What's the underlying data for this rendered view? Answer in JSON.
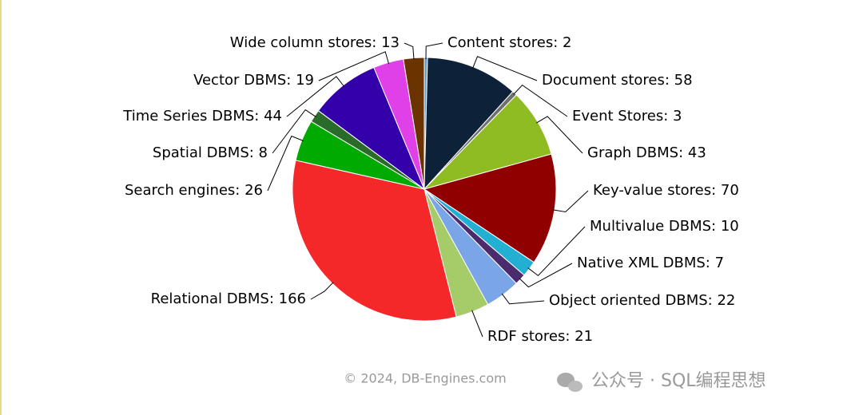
{
  "chart_data": {
    "type": "pie",
    "values": [
      2,
      58,
      3,
      43,
      70,
      10,
      7,
      22,
      21,
      166,
      26,
      8,
      44,
      19,
      13
    ],
    "value_labels": [
      "Content stores: 2",
      "Document stores: 58",
      "Event Stores: 3",
      "Graph DBMS: 43",
      "Key-value stores: 70",
      "Multivalue DBMS: 10",
      "Native XML DBMS: 7",
      "Object oriented DBMS: 22",
      "RDF stores: 21",
      "Relational DBMS: 166",
      "Search engines: 26",
      "Spatial DBMS: 8",
      "Time Series DBMS: 44",
      "Vector DBMS: 19",
      "Wide column stores: 13"
    ],
    "colors": [
      "#5b9bd5",
      "#0d2238",
      "#6f6f6f",
      "#8fbc22",
      "#900000",
      "#22afd2",
      "#4b2a6e",
      "#7aa6e8",
      "#a6cc6a",
      "#f42828",
      "#00aa00",
      "#2a6b2a",
      "#3300aa",
      "#e040e8",
      "#6b3300"
    ],
    "credit": "© 2024, DB-Engines.com"
  },
  "watermark": "公众号 · SQL编程思想"
}
